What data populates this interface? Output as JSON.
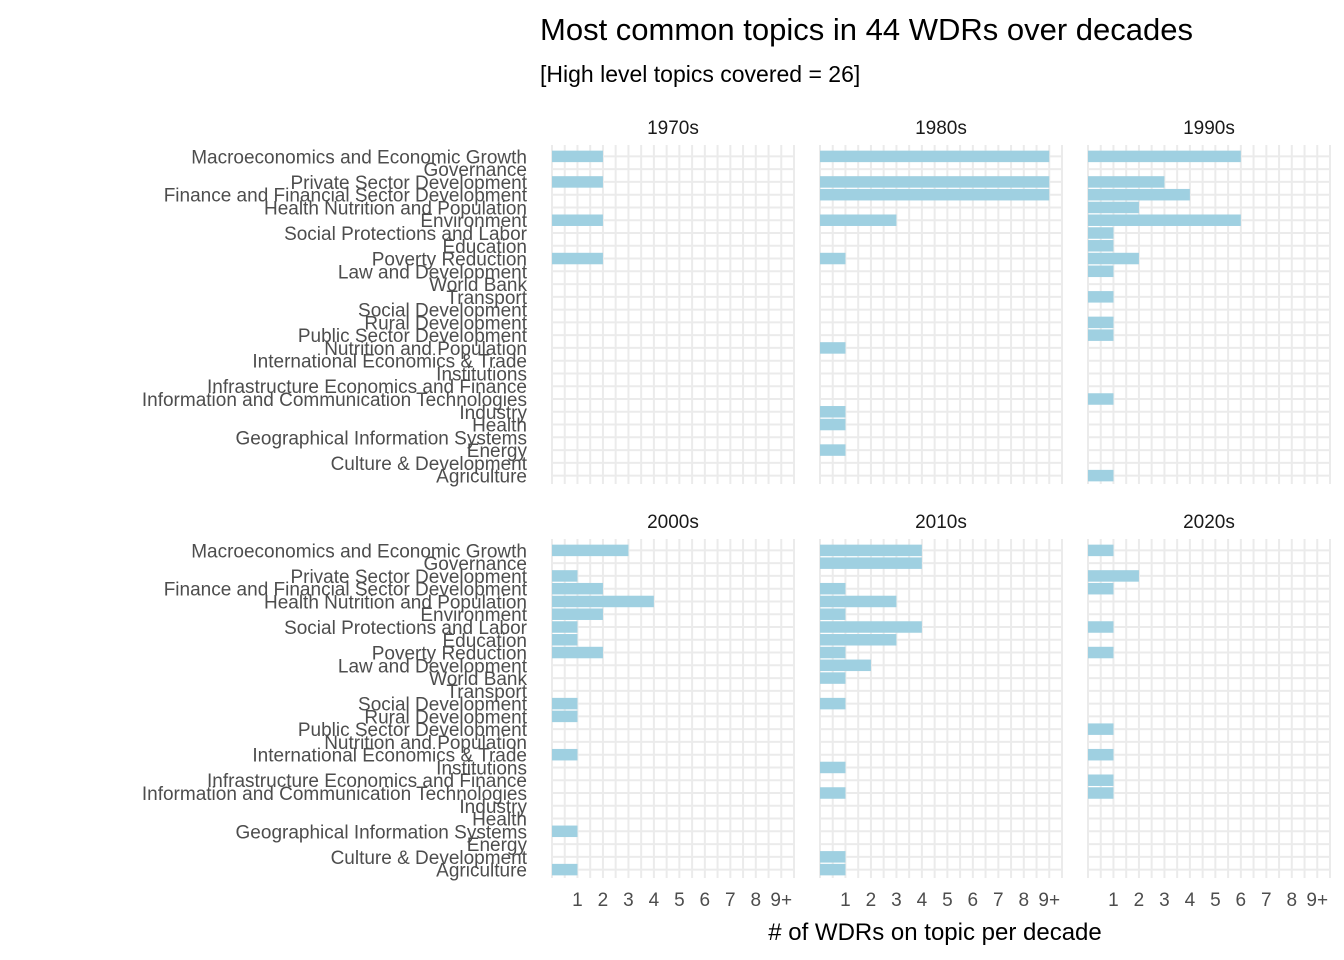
{
  "chart_data": {
    "type": "bar",
    "orientation": "horizontal",
    "title": "Most common topics in 44 WDRs over decades",
    "subtitle": "[High level topics covered = 26]",
    "xlabel": "# of WDRs on topic per decade",
    "ylabel": "",
    "xlim": [
      0,
      9
    ],
    "x_tick_labels": [
      "1",
      "2",
      "3",
      "4",
      "5",
      "6",
      "7",
      "8",
      "9+"
    ],
    "grid": true,
    "bar_color": "#9fd0e1",
    "categories": [
      "Macroeconomics and Economic Growth",
      "Governance",
      "Private Sector Development",
      "Finance and Financial Sector Development",
      "Health Nutrition and Population",
      "Environment",
      "Social Protections and Labor",
      "Education",
      "Poverty Reduction",
      "Law and Development",
      "World Bank",
      "Transport",
      "Social Development",
      "Rural Development",
      "Public Sector Development",
      "Nutrition and Population",
      "International Economics & Trade",
      "Institutions",
      "Infrastructure Economics and Finance",
      "Information and Communication Technologies",
      "Industry",
      "Health",
      "Geographical Information Systems",
      "Energy",
      "Culture & Development",
      "Agriculture"
    ],
    "panels": [
      {
        "name": "1970s",
        "values": [
          2,
          0,
          2,
          0,
          0,
          2,
          0,
          0,
          2,
          0,
          0,
          0,
          0,
          0,
          0,
          0,
          0,
          0,
          0,
          0,
          0,
          0,
          0,
          0,
          0,
          0
        ]
      },
      {
        "name": "1980s",
        "values": [
          9,
          0,
          9,
          9,
          0,
          3,
          0,
          0,
          1,
          0,
          0,
          0,
          0,
          0,
          0,
          1,
          0,
          0,
          0,
          0,
          1,
          1,
          0,
          1,
          0,
          0
        ]
      },
      {
        "name": "1990s",
        "values": [
          6,
          0,
          3,
          4,
          2,
          6,
          1,
          1,
          2,
          1,
          0,
          1,
          0,
          1,
          1,
          0,
          0,
          0,
          0,
          1,
          0,
          0,
          0,
          0,
          0,
          1
        ]
      },
      {
        "name": "2000s",
        "values": [
          3,
          0,
          1,
          2,
          4,
          2,
          1,
          1,
          2,
          0,
          0,
          0,
          1,
          1,
          0,
          0,
          1,
          0,
          0,
          0,
          0,
          0,
          1,
          0,
          0,
          1
        ]
      },
      {
        "name": "2010s",
        "values": [
          4,
          4,
          0,
          1,
          3,
          1,
          4,
          3,
          1,
          2,
          1,
          0,
          1,
          0,
          0,
          0,
          0,
          1,
          0,
          1,
          0,
          0,
          0,
          0,
          1,
          1
        ]
      },
      {
        "name": "2020s",
        "values": [
          1,
          0,
          2,
          1,
          0,
          0,
          1,
          0,
          1,
          0,
          0,
          0,
          0,
          0,
          1,
          0,
          1,
          0,
          1,
          1,
          0,
          0,
          0,
          0,
          0,
          0
        ]
      }
    ]
  }
}
